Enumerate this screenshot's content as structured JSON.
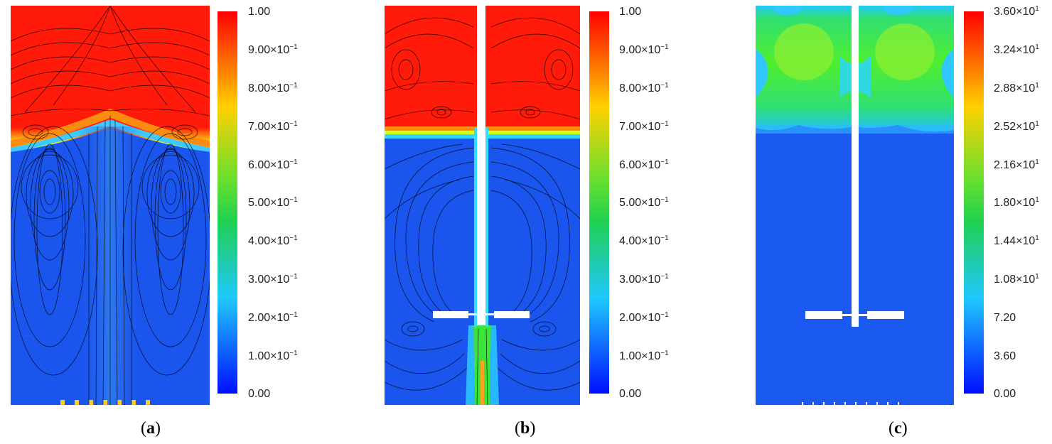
{
  "panels": [
    {
      "id": "a",
      "caption_open": "(",
      "caption_letter": "a",
      "caption_close": ")",
      "colorbar_ticks": [
        {
          "mant": "1.00",
          "exp": ""
        },
        {
          "mant": "9.00×10",
          "exp": "−1"
        },
        {
          "mant": "8.00×10",
          "exp": "−1"
        },
        {
          "mant": "7.00×10",
          "exp": "−1"
        },
        {
          "mant": "6.00×10",
          "exp": "−1"
        },
        {
          "mant": "5.00×10",
          "exp": "−1"
        },
        {
          "mant": "4.00×10",
          "exp": "−1"
        },
        {
          "mant": "3.00×10",
          "exp": "−1"
        },
        {
          "mant": "2.00×10",
          "exp": "−1"
        },
        {
          "mant": "1.00×10",
          "exp": "−1"
        },
        {
          "mant": "0.00",
          "exp": ""
        }
      ]
    },
    {
      "id": "b",
      "caption_open": "(",
      "caption_letter": "b",
      "caption_close": ")",
      "colorbar_ticks": [
        {
          "mant": "1.00",
          "exp": ""
        },
        {
          "mant": "9.00×10",
          "exp": "−1"
        },
        {
          "mant": "8.00×10",
          "exp": "−1"
        },
        {
          "mant": "7.00×10",
          "exp": "−1"
        },
        {
          "mant": "6.00×10",
          "exp": "−1"
        },
        {
          "mant": "5.00×10",
          "exp": "−1"
        },
        {
          "mant": "4.00×10",
          "exp": "−1"
        },
        {
          "mant": "3.00×10",
          "exp": "−1"
        },
        {
          "mant": "2.00×10",
          "exp": "−1"
        },
        {
          "mant": "1.00×10",
          "exp": "−1"
        },
        {
          "mant": "0.00",
          "exp": ""
        }
      ]
    },
    {
      "id": "c",
      "caption_open": "(",
      "caption_letter": "c",
      "caption_close": ")",
      "colorbar_ticks": [
        {
          "mant": "3.60×10",
          "exp": "1"
        },
        {
          "mant": "3.24×10",
          "exp": "1"
        },
        {
          "mant": "2.88×10",
          "exp": "1"
        },
        {
          "mant": "2.52×10",
          "exp": "1"
        },
        {
          "mant": "2.16×10",
          "exp": "1"
        },
        {
          "mant": "1.80×10",
          "exp": "1"
        },
        {
          "mant": "1.44×10",
          "exp": "1"
        },
        {
          "mant": "1.08×10",
          "exp": "1"
        },
        {
          "mant": "7.20",
          "exp": ""
        },
        {
          "mant": "3.60",
          "exp": ""
        },
        {
          "mant": "0.00",
          "exp": ""
        }
      ]
    }
  ],
  "colors": {
    "red": "#ff1a0a",
    "blue": "#1650f0",
    "green": "#3ce33c",
    "streamline": "#000000",
    "impeller": "#ffffff"
  }
}
